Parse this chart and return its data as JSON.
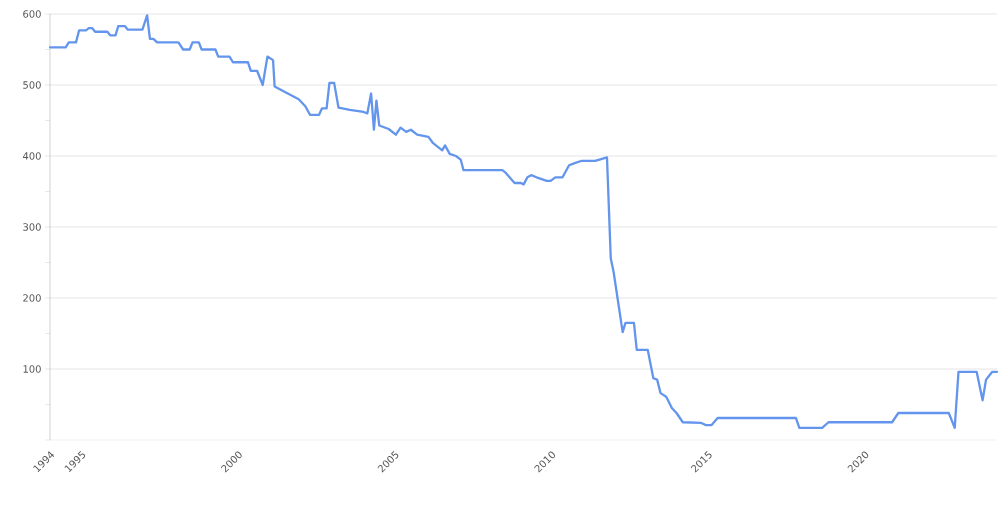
{
  "chart_data": {
    "type": "line",
    "x": [
      1994.0,
      1994.5,
      1994.6,
      1994.83,
      1994.93,
      1995.15,
      1995.24,
      1995.35,
      1995.44,
      1995.83,
      1995.92,
      1996.09,
      1996.18,
      1996.39,
      1996.48,
      1996.95,
      1997.1,
      1997.19,
      1997.3,
      1997.42,
      1998.1,
      1998.25,
      1998.46,
      1998.55,
      1998.75,
      1998.84,
      1999.28,
      1999.37,
      1999.73,
      1999.84,
      2000.32,
      2000.41,
      2000.61,
      2000.79,
      2000.94,
      2001.12,
      2001.17,
      2001.5,
      2001.94,
      2002.15,
      2002.3,
      2002.59,
      2002.68,
      2002.83,
      2002.92,
      2003.07,
      2003.21,
      2003.57,
      2004.01,
      2004.13,
      2004.25,
      2004.34,
      2004.42,
      2004.51,
      2004.81,
      2005.04,
      2005.19,
      2005.37,
      2005.52,
      2005.72,
      2006.08,
      2006.23,
      2006.52,
      2006.61,
      2006.76,
      2006.96,
      2007.11,
      2007.2,
      2008.44,
      2008.53,
      2008.83,
      2009.03,
      2009.12,
      2009.24,
      2009.36,
      2009.53,
      2009.86,
      2009.98,
      2010.13,
      2010.36,
      2010.57,
      2010.75,
      2010.95,
      2011.4,
      2011.54,
      2011.78,
      2011.9,
      2011.99,
      2012.28,
      2012.37,
      2012.64,
      2012.73,
      2013.08,
      2013.26,
      2013.38,
      2013.49,
      2013.67,
      2013.85,
      2014.0,
      2014.2,
      2014.79,
      2014.94,
      2015.12,
      2015.31,
      2017.81,
      2017.92,
      2018.65,
      2018.85,
      2020.88,
      2021.08,
      2022.69,
      2022.88,
      2023.0,
      2023.58,
      2023.77,
      2023.88,
      2024.08,
      2024.23
    ],
    "series": [
      {
        "color": "#6495ed",
        "values": [
          553,
          553,
          560,
          560,
          577,
          577,
          580,
          580,
          575,
          575,
          570,
          570,
          583,
          583,
          578,
          578,
          598,
          565,
          565,
          560,
          560,
          550,
          550,
          560,
          560,
          550,
          550,
          540,
          540,
          532,
          532,
          520,
          520,
          500,
          540,
          535,
          498,
          490,
          480,
          470,
          458,
          458,
          467,
          467,
          503,
          503,
          468,
          465,
          462,
          460,
          488,
          437,
          478,
          443,
          438,
          430,
          440,
          434,
          437,
          430,
          427,
          418,
          408,
          415,
          403,
          400,
          395,
          380,
          380,
          377,
          362,
          362,
          360,
          370,
          373,
          370,
          365,
          365,
          370,
          370,
          387,
          390,
          393,
          393,
          395,
          398,
          256,
          237,
          152,
          165,
          165,
          127,
          127,
          87,
          85,
          66,
          61,
          45,
          38,
          25,
          24,
          21,
          21,
          31,
          31,
          17,
          17,
          25,
          25,
          38,
          38,
          17,
          96,
          96,
          56,
          85,
          96,
          96
        ]
      }
    ],
    "xlim": [
      1994,
      2024.23
    ],
    "xticks": [
      1994,
      1995,
      2000,
      2005,
      2010,
      2015,
      2020
    ],
    "ylim": [
      0,
      600
    ],
    "yticks": [
      {
        "value": 0,
        "label": null
      },
      {
        "value": 50,
        "label": null
      },
      100,
      {
        "value": 150,
        "label": null
      },
      200,
      {
        "value": 250,
        "label": null
      },
      300,
      {
        "value": 350,
        "label": null
      },
      400,
      {
        "value": 450,
        "label": null
      },
      500,
      {
        "value": 550,
        "label": null
      },
      600
    ],
    "grid": "y"
  }
}
